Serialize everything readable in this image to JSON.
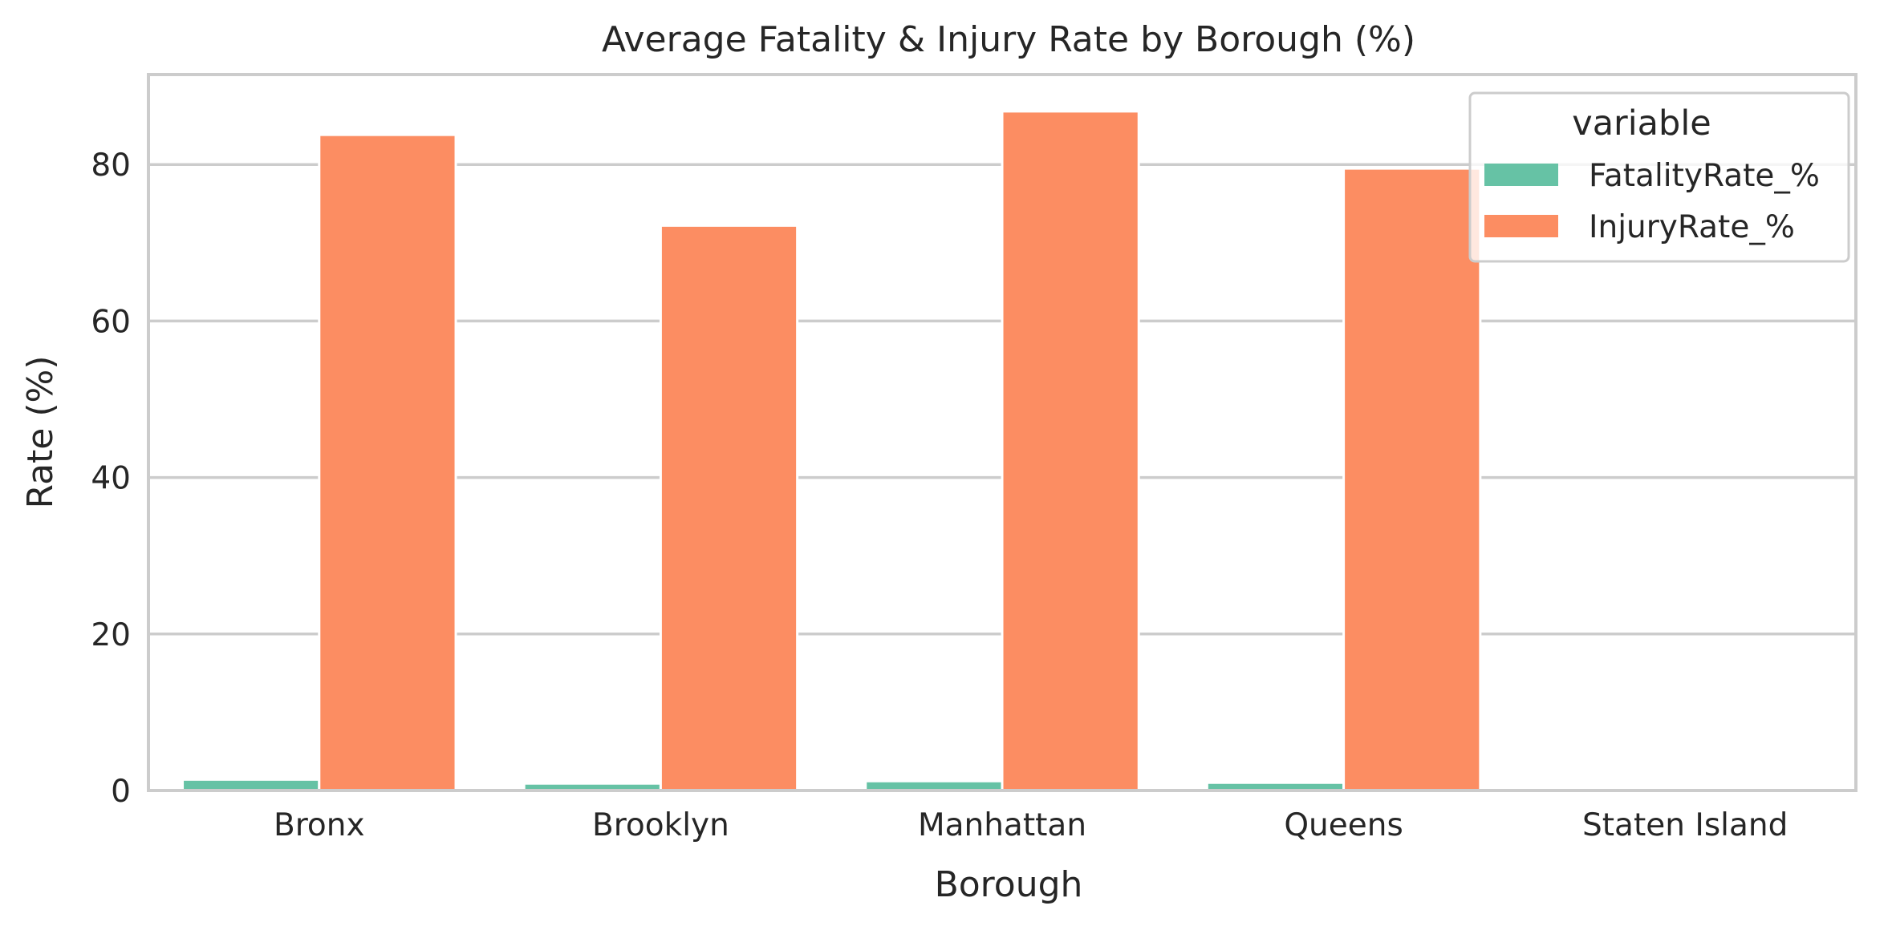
{
  "chart_data": {
    "type": "bar",
    "title": "Average Fatality & Injury Rate by Borough (%)",
    "xlabel": "Borough",
    "ylabel": "Rate (%)",
    "categories": [
      "Bronx",
      "Brooklyn",
      "Manhattan",
      "Queens",
      "Staten Island"
    ],
    "series": [
      {
        "name": "FatalityRate_%",
        "color": "#66c2a5",
        "values": [
          1.4,
          0.9,
          1.2,
          1.0,
          0
        ]
      },
      {
        "name": "InjuryRate_%",
        "color": "#fc8d62",
        "values": [
          83.8,
          72.2,
          86.8,
          79.5,
          0
        ]
      }
    ],
    "ylim": [
      0,
      91.5
    ],
    "yticks": [
      0,
      20,
      40,
      60,
      80
    ],
    "grid": true,
    "legend": {
      "title": "variable",
      "placement": "top-right"
    }
  }
}
